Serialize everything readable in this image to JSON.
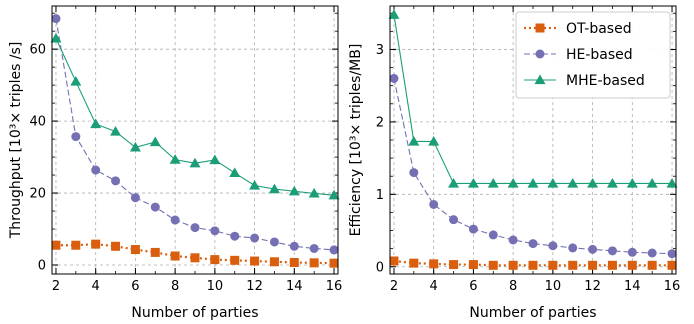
{
  "chart_data": [
    {
      "type": "line",
      "xlabel": "Number of parties",
      "ylabel": "Throughput [10³× triples /s]",
      "xlim": [
        1.8,
        16.2
      ],
      "ylim": [
        -2.5,
        72
      ],
      "xticks": [
        2,
        4,
        6,
        8,
        10,
        12,
        14,
        16
      ],
      "yticks": [
        0,
        20,
        40,
        60
      ],
      "grid": true,
      "x": [
        2,
        3,
        4,
        5,
        6,
        7,
        8,
        9,
        10,
        11,
        12,
        13,
        14,
        15,
        16
      ],
      "series": [
        {
          "name": "OT-based",
          "color": "#d95f0e",
          "marker": "square",
          "values": [
            5.5,
            5.5,
            5.8,
            5.2,
            4.3,
            3.5,
            2.5,
            2.0,
            1.5,
            1.3,
            1.1,
            0.9,
            0.7,
            0.6,
            0.5
          ]
        },
        {
          "name": "HE-based",
          "color": "#7570b3",
          "marker": "circle",
          "values": [
            68.5,
            35.7,
            26.4,
            23.4,
            18.7,
            16.1,
            12.5,
            10.4,
            9.5,
            8.0,
            7.5,
            6.4,
            5.2,
            4.6,
            4.2
          ]
        },
        {
          "name": "MHE-based",
          "color": "#1b9e77",
          "marker": "triangle",
          "values": [
            63.0,
            51.0,
            39.2,
            37.1,
            32.7,
            34.2,
            29.3,
            28.3,
            29.2,
            25.6,
            22.1,
            21.1,
            20.5,
            19.9,
            19.4
          ]
        }
      ]
    },
    {
      "type": "line",
      "xlabel": "Number of parties",
      "ylabel": "Efficiency [10³× triples/MB]",
      "xlim": [
        1.8,
        16.2
      ],
      "ylim": [
        -0.1,
        3.6
      ],
      "xticks": [
        2,
        4,
        6,
        8,
        10,
        12,
        14,
        16
      ],
      "yticks": [
        0,
        1,
        2,
        3
      ],
      "grid": true,
      "legend": "top-right",
      "x": [
        2,
        3,
        4,
        5,
        6,
        7,
        8,
        9,
        10,
        11,
        12,
        13,
        14,
        15,
        16
      ],
      "series": [
        {
          "name": "OT-based",
          "color": "#d95f0e",
          "marker": "square",
          "values": [
            0.08,
            0.05,
            0.04,
            0.03,
            0.03,
            0.02,
            0.02,
            0.02,
            0.02,
            0.02,
            0.02,
            0.02,
            0.02,
            0.02,
            0.02
          ]
        },
        {
          "name": "HE-based",
          "color": "#7570b3",
          "marker": "circle",
          "values": [
            2.6,
            1.3,
            0.86,
            0.65,
            0.52,
            0.44,
            0.37,
            0.32,
            0.29,
            0.26,
            0.24,
            0.22,
            0.2,
            0.19,
            0.18
          ]
        },
        {
          "name": "MHE-based",
          "color": "#1b9e77",
          "marker": "triangle",
          "values": [
            3.48,
            1.73,
            1.73,
            1.15,
            1.15,
            1.15,
            1.15,
            1.15,
            1.15,
            1.15,
            1.15,
            1.15,
            1.15,
            1.15,
            1.15
          ]
        }
      ]
    }
  ]
}
